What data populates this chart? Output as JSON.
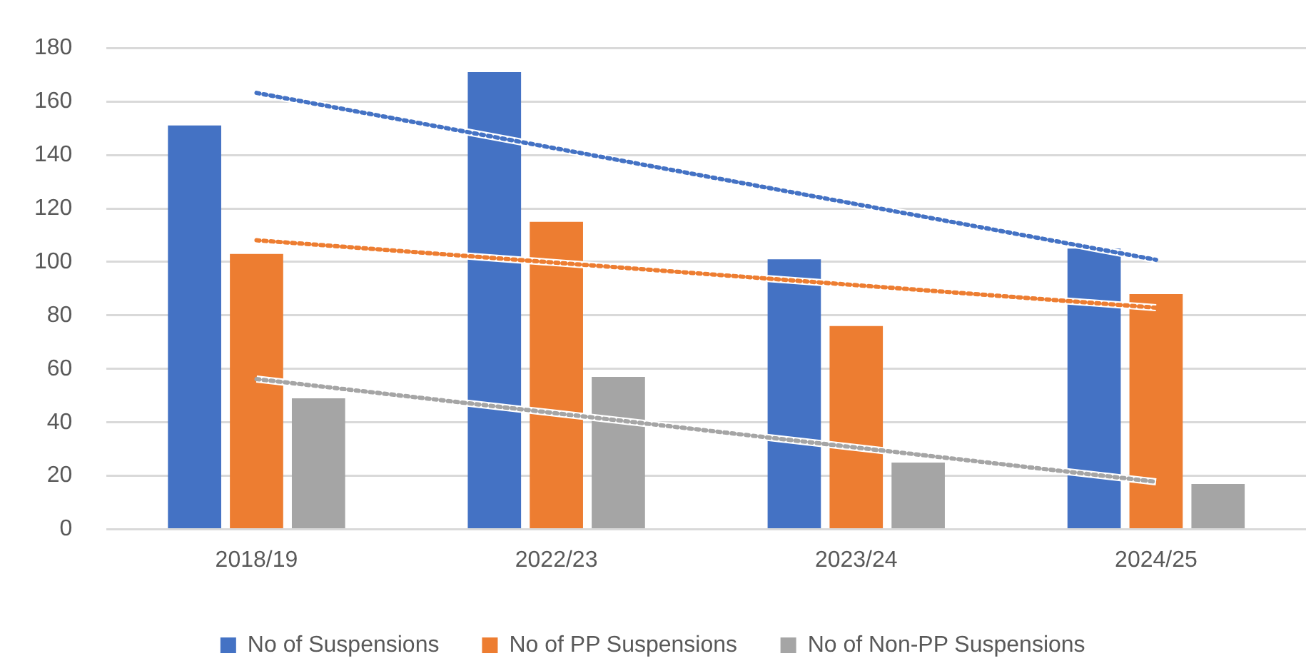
{
  "chart_data": {
    "type": "bar",
    "categories": [
      "2018/19",
      "2022/23",
      "2023/24",
      "2024/25"
    ],
    "series": [
      {
        "name": "No of Suspensions",
        "color": "#4472c4",
        "values": [
          151,
          171,
          101,
          105
        ]
      },
      {
        "name": "No of PP Suspensions",
        "color": "#ed7d31",
        "values": [
          103,
          115,
          76,
          88
        ]
      },
      {
        "name": "No of Non-PP Suspensions",
        "color": "#a5a5a5",
        "values": [
          49,
          57,
          25,
          17
        ]
      },
      {
        "type": "line",
        "color": "#4472c4",
        "values": [
          163.2,
          142.4,
          121.6,
          100.8
        ],
        "line_style": "dotted",
        "marker": "none"
      },
      {
        "type": "line",
        "color": "#ed7d31",
        "values": [
          108.1,
          99.7,
          91.3,
          82.9
        ],
        "line_style": "dotted",
        "marker": "none"
      },
      {
        "type": "line",
        "color": "#a5a5a5",
        "values": [
          56.2,
          43.4,
          30.6,
          17.8
        ],
        "line_style": "dotted",
        "marker": "none"
      }
    ],
    "ylim": [
      0,
      180
    ],
    "yticks": [
      0,
      20,
      40,
      60,
      80,
      100,
      120,
      140,
      160,
      180
    ],
    "grid": "y",
    "legend": "bottom"
  }
}
